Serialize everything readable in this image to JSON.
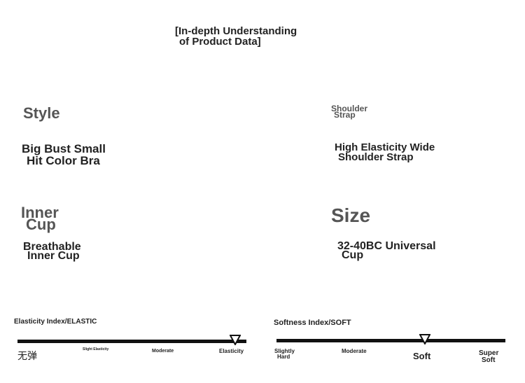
{
  "header": {
    "title_lines": [
      "[In-depth Understanding",
      "of Product Data]"
    ]
  },
  "fields": [
    {
      "label_lines": [
        "Style"
      ],
      "value_lines": [
        "Big Bust Small",
        "Hit Color Bra"
      ]
    },
    {
      "label_lines": [
        "Shoulder",
        "Strap"
      ],
      "value_lines": [
        "High Elasticity Wide",
        "Shoulder Strap"
      ]
    },
    {
      "label_lines": [
        "Inner",
        "Cup"
      ],
      "value_lines": [
        "Breathable",
        "Inner Cup"
      ]
    },
    {
      "label_lines": [
        "Size"
      ],
      "value_lines": [
        "32-40BC Universal",
        "Cup"
      ]
    }
  ],
  "indices": [
    {
      "title": "Elasticity Index/ELASTIC",
      "levels": [
        [
          "无弹"
        ],
        [
          "Slight Elasticity"
        ],
        [
          "Moderate"
        ],
        [
          "Elasticity"
        ]
      ]
    },
    {
      "title": "Softness Index/SOFT",
      "levels": [
        [
          "Slightly",
          "Hard"
        ],
        [
          "Moderate"
        ],
        [
          "Soft"
        ],
        [
          "Super",
          "Soft"
        ]
      ]
    }
  ]
}
